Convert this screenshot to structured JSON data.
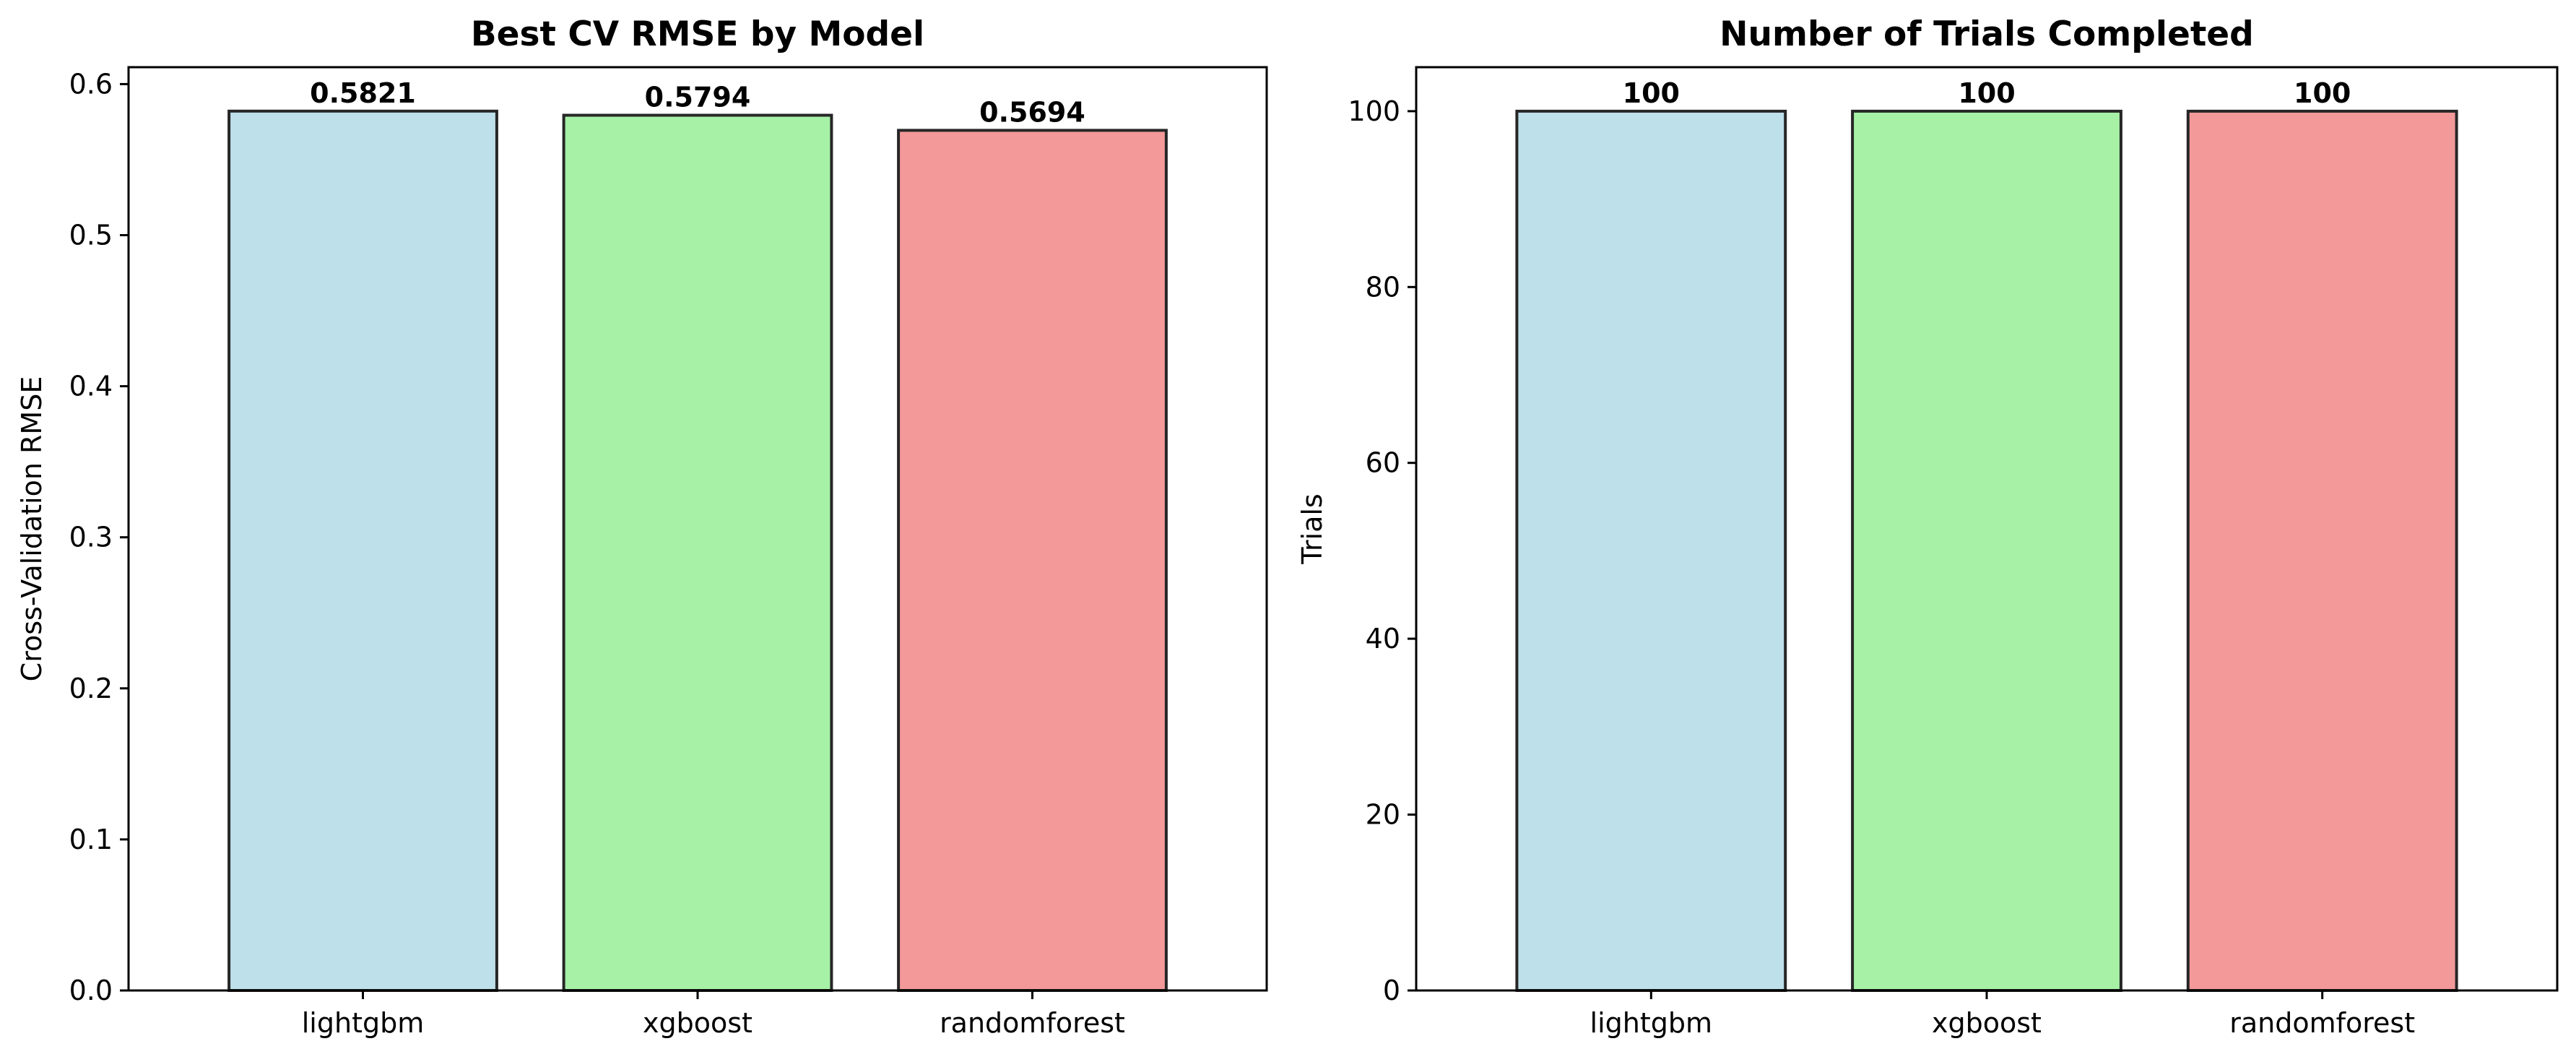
{
  "chart_data": [
    {
      "type": "bar",
      "title": "Best CV RMSE by Model",
      "xlabel": "",
      "ylabel": "Cross-Validation RMSE",
      "categories": [
        "lightgbm",
        "xgboost",
        "randomforest"
      ],
      "values": [
        0.5821,
        0.5794,
        0.5694
      ],
      "value_labels": [
        "0.5821",
        "0.5794",
        "0.5694"
      ],
      "colors": [
        "#add8e6",
        "#90ee90",
        "#f08080"
      ],
      "yticks": [
        0.0,
        0.1,
        0.2,
        0.3,
        0.4,
        0.5,
        0.6
      ],
      "ytick_labels": [
        "0.0",
        "0.1",
        "0.2",
        "0.3",
        "0.4",
        "0.5",
        "0.6"
      ],
      "ylim": [
        0,
        0.6112
      ],
      "grid": false
    },
    {
      "type": "bar",
      "title": "Number of Trials Completed",
      "xlabel": "",
      "ylabel": "Trials",
      "categories": [
        "lightgbm",
        "xgboost",
        "randomforest"
      ],
      "values": [
        100,
        100,
        100
      ],
      "value_labels": [
        "100",
        "100",
        "100"
      ],
      "colors": [
        "#add8e6",
        "#90ee90",
        "#f08080"
      ],
      "yticks": [
        0,
        20,
        40,
        60,
        80,
        100
      ],
      "ytick_labels": [
        "0",
        "20",
        "40",
        "60",
        "80",
        "100"
      ],
      "ylim": [
        0,
        105
      ],
      "grid": false
    }
  ]
}
